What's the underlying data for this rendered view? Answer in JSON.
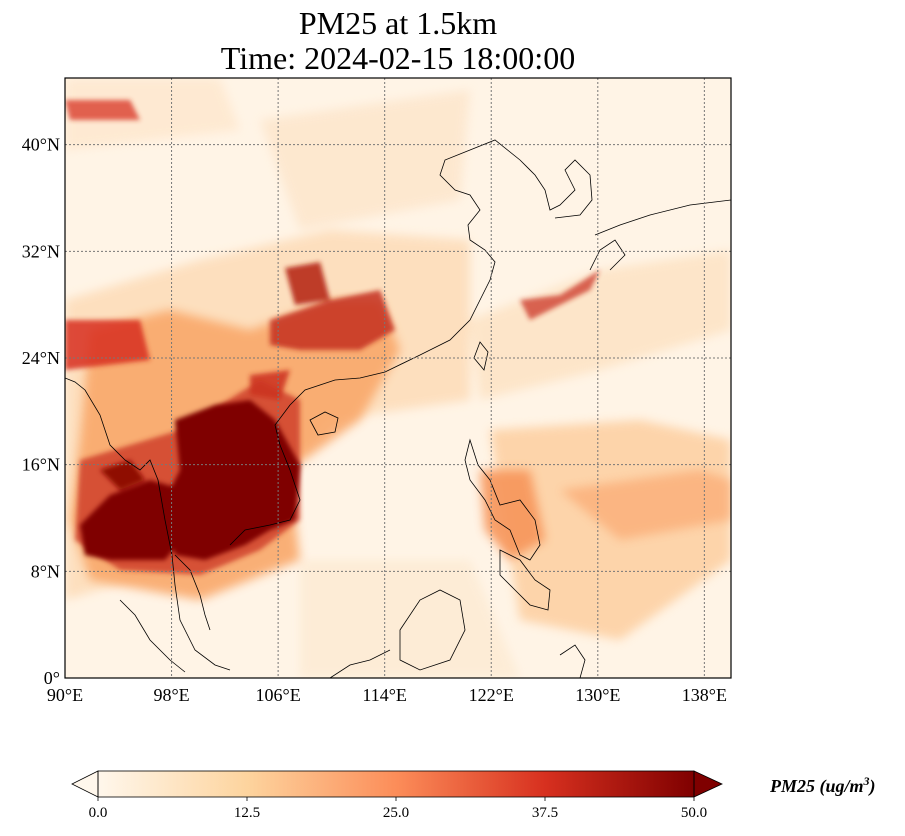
{
  "title": {
    "line1": "PM25 at 1.5km",
    "line2": "Time: 2024-02-15 18:00:00"
  },
  "map": {
    "projection": "PlateCarree",
    "lon_range": [
      90,
      140
    ],
    "lat_range": [
      0,
      45
    ],
    "lon_ticks": [
      {
        "value": 90,
        "label": "90°E"
      },
      {
        "value": 98,
        "label": "98°E"
      },
      {
        "value": 106,
        "label": "106°E"
      },
      {
        "value": 114,
        "label": "114°E"
      },
      {
        "value": 122,
        "label": "122°E"
      },
      {
        "value": 130,
        "label": "130°E"
      },
      {
        "value": 138,
        "label": "138°E"
      }
    ],
    "lat_ticks": [
      {
        "value": 0,
        "label": "0°"
      },
      {
        "value": 8,
        "label": "8°N"
      },
      {
        "value": 16,
        "label": "16°N"
      },
      {
        "value": 24,
        "label": "24°N"
      },
      {
        "value": 32,
        "label": "32°N"
      },
      {
        "value": 40,
        "label": "40°N"
      }
    ],
    "gridlines": "dotted",
    "field_color_scale": "OrRd"
  },
  "colorbar": {
    "min": 0.0,
    "max": 50.0,
    "extend": "both",
    "ticks": [
      "0.0",
      "12.5",
      "25.0",
      "37.5",
      "50.0"
    ],
    "label_text": "PM25 (ug/m",
    "label_sup": "3",
    "label_close": ")",
    "colors": [
      "#fff7ec",
      "#fdd49e",
      "#fc8d59",
      "#d7301f",
      "#7f0000"
    ]
  }
}
